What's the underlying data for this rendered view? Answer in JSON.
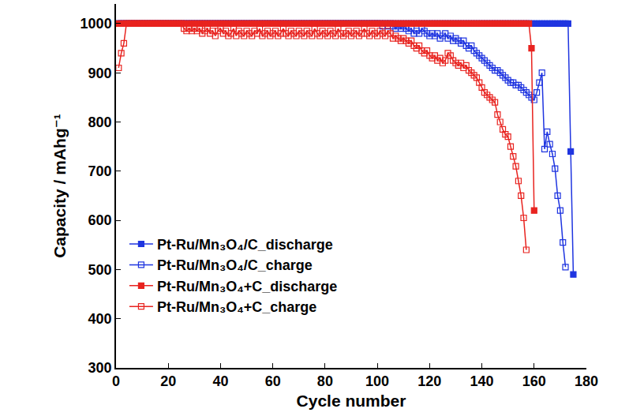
{
  "chart_data": {
    "type": "line",
    "x_label": "Cycle number",
    "y_label": "Capacity / mAhg⁻¹",
    "xlim": [
      0,
      180
    ],
    "xticks": [
      0,
      20,
      40,
      60,
      80,
      100,
      120,
      140,
      160,
      180
    ],
    "ylim": [
      300,
      1040
    ],
    "yticks": [
      300,
      400,
      500,
      600,
      700,
      800,
      900,
      1000
    ],
    "grid": false,
    "legend": "lower left",
    "x": [
      1,
      2,
      3,
      4,
      5,
      6,
      7,
      8,
      9,
      10,
      11,
      12,
      13,
      14,
      15,
      16,
      17,
      18,
      19,
      20,
      21,
      22,
      23,
      24,
      25,
      26,
      27,
      28,
      29,
      30,
      31,
      32,
      33,
      34,
      35,
      36,
      37,
      38,
      39,
      40,
      41,
      42,
      43,
      44,
      45,
      46,
      47,
      48,
      49,
      50,
      51,
      52,
      53,
      54,
      55,
      56,
      57,
      58,
      59,
      60,
      61,
      62,
      63,
      64,
      65,
      66,
      67,
      68,
      69,
      70,
      71,
      72,
      73,
      74,
      75,
      76,
      77,
      78,
      79,
      80,
      81,
      82,
      83,
      84,
      85,
      86,
      87,
      88,
      89,
      90,
      91,
      92,
      93,
      94,
      95,
      96,
      97,
      98,
      99,
      100,
      101,
      102,
      103,
      104,
      105,
      106,
      107,
      108,
      109,
      110,
      111,
      112,
      113,
      114,
      115,
      116,
      117,
      118,
      119,
      120,
      121,
      122,
      123,
      124,
      125,
      126,
      127,
      128,
      129,
      130,
      131,
      132,
      133,
      134,
      135,
      136,
      137,
      138,
      139,
      140,
      141,
      142,
      143,
      144,
      145,
      146,
      147,
      148,
      149,
      150,
      151,
      152,
      153,
      154,
      155,
      156,
      157,
      158,
      159,
      160,
      161,
      162,
      163,
      164,
      165,
      166,
      167,
      168,
      169,
      170,
      171,
      172,
      173,
      174,
      175
    ],
    "series": [
      {
        "name": "Pt-Ru/Mn₃O₄/C_discharge",
        "color": "#1f35e0",
        "marker": "square",
        "values": [
          1000,
          1000,
          1000,
          1000,
          1000,
          1000,
          1000,
          1000,
          1000,
          1000,
          1000,
          1000,
          1000,
          1000,
          1000,
          1000,
          1000,
          1000,
          1000,
          1000,
          1000,
          1000,
          1000,
          1000,
          1000,
          1000,
          1000,
          1000,
          1000,
          1000,
          1000,
          1000,
          1000,
          1000,
          1000,
          1000,
          1000,
          1000,
          1000,
          1000,
          1000,
          1000,
          1000,
          1000,
          1000,
          1000,
          1000,
          1000,
          1000,
          1000,
          1000,
          1000,
          1000,
          1000,
          1000,
          1000,
          1000,
          1000,
          1000,
          1000,
          1000,
          1000,
          1000,
          1000,
          1000,
          1000,
          1000,
          1000,
          1000,
          1000,
          1000,
          1000,
          1000,
          1000,
          1000,
          1000,
          1000,
          1000,
          1000,
          1000,
          1000,
          1000,
          1000,
          1000,
          1000,
          1000,
          1000,
          1000,
          1000,
          1000,
          1000,
          1000,
          1000,
          1000,
          1000,
          1000,
          1000,
          1000,
          1000,
          1000,
          1000,
          1000,
          1000,
          1000,
          1000,
          1000,
          1000,
          1000,
          1000,
          1000,
          1000,
          1000,
          1000,
          1000,
          1000,
          1000,
          1000,
          1000,
          1000,
          1000,
          1000,
          1000,
          1000,
          1000,
          1000,
          1000,
          1000,
          1000,
          1000,
          1000,
          1000,
          1000,
          1000,
          1000,
          1000,
          1000,
          1000,
          1000,
          1000,
          1000,
          1000,
          1000,
          1000,
          1000,
          1000,
          1000,
          1000,
          1000,
          1000,
          1000,
          1000,
          1000,
          1000,
          1000,
          1000,
          1000,
          1000,
          1000,
          1000,
          1000,
          1000,
          1000,
          1000,
          1000,
          1000,
          1000,
          1000,
          1000,
          1000,
          1000,
          1000,
          1000,
          1000,
          740,
          490
        ]
      },
      {
        "name": "Pt-Ru/Mn₃O₄/C_charge",
        "color": "#1f35e0",
        "marker": "square-open",
        "values": [
          1000,
          1000,
          1000,
          1000,
          1000,
          1000,
          1000,
          1000,
          1000,
          1000,
          1000,
          1000,
          1000,
          1000,
          1000,
          1000,
          1000,
          1000,
          1000,
          1000,
          1000,
          1000,
          1000,
          1000,
          1000,
          1000,
          1000,
          1000,
          1000,
          1000,
          1000,
          1000,
          1000,
          1000,
          1000,
          1000,
          1000,
          1000,
          1000,
          1000,
          1000,
          1000,
          1000,
          1000,
          1000,
          1000,
          1000,
          1000,
          1000,
          1000,
          1000,
          1000,
          1000,
          1000,
          1000,
          1000,
          1000,
          1000,
          1000,
          1000,
          1000,
          1000,
          1000,
          1000,
          1000,
          1000,
          1000,
          1000,
          1000,
          1000,
          1000,
          1000,
          1000,
          1000,
          1000,
          1000,
          1000,
          1000,
          1000,
          1000,
          1000,
          1000,
          1000,
          1000,
          1000,
          1000,
          1000,
          1000,
          1000,
          1000,
          1000,
          1000,
          1000,
          1000,
          1000,
          1000,
          1000,
          1000,
          1000,
          1000,
          1000,
          995,
          1000,
          995,
          1000,
          995,
          990,
          995,
          990,
          995,
          990,
          985,
          990,
          980,
          985,
          980,
          990,
          985,
          980,
          975,
          980,
          975,
          980,
          970,
          975,
          980,
          970,
          975,
          965,
          970,
          965,
          960,
          965,
          955,
          950,
          955,
          945,
          940,
          935,
          930,
          925,
          920,
          915,
          910,
          905,
          905,
          900,
          895,
          890,
          885,
          880,
          880,
          875,
          875,
          870,
          865,
          860,
          855,
          850,
          845,
          860,
          880,
          900,
          745,
          780,
          755,
          735,
          705,
          650,
          620,
          555,
          505,
          null,
          null,
          null
        ]
      },
      {
        "name": "Pt-Ru/Mn₃O₄+C_discharge",
        "color": "#e8231f",
        "marker": "square",
        "values": [
          1000,
          1000,
          1000,
          1000,
          1000,
          1000,
          1000,
          1000,
          1000,
          1000,
          1000,
          1000,
          1000,
          1000,
          1000,
          1000,
          1000,
          1000,
          1000,
          1000,
          1000,
          1000,
          1000,
          1000,
          1000,
          1000,
          1000,
          1000,
          1000,
          1000,
          1000,
          1000,
          1000,
          1000,
          1000,
          1000,
          1000,
          1000,
          1000,
          1000,
          1000,
          1000,
          1000,
          1000,
          1000,
          1000,
          1000,
          1000,
          1000,
          1000,
          1000,
          1000,
          1000,
          1000,
          1000,
          1000,
          1000,
          1000,
          1000,
          1000,
          1000,
          1000,
          1000,
          1000,
          1000,
          1000,
          1000,
          1000,
          1000,
          1000,
          1000,
          1000,
          1000,
          1000,
          1000,
          1000,
          1000,
          1000,
          1000,
          1000,
          1000,
          1000,
          1000,
          1000,
          1000,
          1000,
          1000,
          1000,
          1000,
          1000,
          1000,
          1000,
          1000,
          1000,
          1000,
          1000,
          1000,
          1000,
          1000,
          1000,
          1000,
          1000,
          1000,
          1000,
          1000,
          1000,
          1000,
          1000,
          1000,
          1000,
          1000,
          1000,
          1000,
          1000,
          1000,
          1000,
          1000,
          1000,
          1000,
          1000,
          1000,
          1000,
          1000,
          1000,
          1000,
          1000,
          1000,
          1000,
          1000,
          1000,
          1000,
          1000,
          1000,
          1000,
          1000,
          1000,
          1000,
          1000,
          1000,
          1000,
          1000,
          1000,
          1000,
          1000,
          1000,
          1000,
          1000,
          1000,
          1000,
          1000,
          1000,
          1000,
          1000,
          1000,
          1000,
          1000,
          1000,
          1000,
          950,
          620,
          null,
          null,
          null,
          null,
          null,
          null,
          null,
          null,
          null,
          null,
          null,
          null,
          null,
          null,
          null
        ]
      },
      {
        "name": "Pt-Ru/Mn₃O₄+C_charge",
        "color": "#e8231f",
        "marker": "square-open",
        "values": [
          910,
          940,
          960,
          1000,
          1000,
          1000,
          1000,
          1000,
          1000,
          1000,
          1000,
          1000,
          1000,
          1000,
          1000,
          1000,
          1000,
          1000,
          1000,
          1000,
          1000,
          1000,
          1000,
          1000,
          1000,
          990,
          985,
          990,
          985,
          990,
          985,
          990,
          980,
          985,
          990,
          980,
          985,
          975,
          985,
          990,
          980,
          985,
          975,
          980,
          990,
          975,
          985,
          980,
          975,
          985,
          980,
          975,
          985,
          980,
          990,
          975,
          980,
          985,
          975,
          980,
          985,
          975,
          980,
          990,
          980,
          975,
          985,
          980,
          975,
          985,
          980,
          975,
          985,
          980,
          975,
          990,
          980,
          975,
          985,
          980,
          975,
          985,
          980,
          975,
          990,
          980,
          975,
          980,
          985,
          975,
          980,
          985,
          975,
          980,
          990,
          980,
          975,
          985,
          980,
          975,
          985,
          980,
          975,
          985,
          980,
          970,
          975,
          970,
          965,
          970,
          965,
          960,
          965,
          955,
          950,
          955,
          945,
          940,
          945,
          935,
          930,
          935,
          925,
          930,
          920,
          925,
          940,
          935,
          925,
          920,
          915,
          920,
          910,
          915,
          905,
          900,
          895,
          890,
          880,
          870,
          860,
          855,
          850,
          845,
          840,
          815,
          800,
          785,
          775,
          770,
          750,
          730,
          710,
          680,
          650,
          605,
          540,
          null,
          null,
          null,
          null,
          null,
          null,
          null,
          null,
          null,
          null,
          null,
          null,
          null,
          null,
          null,
          null,
          null,
          null
        ]
      }
    ]
  }
}
